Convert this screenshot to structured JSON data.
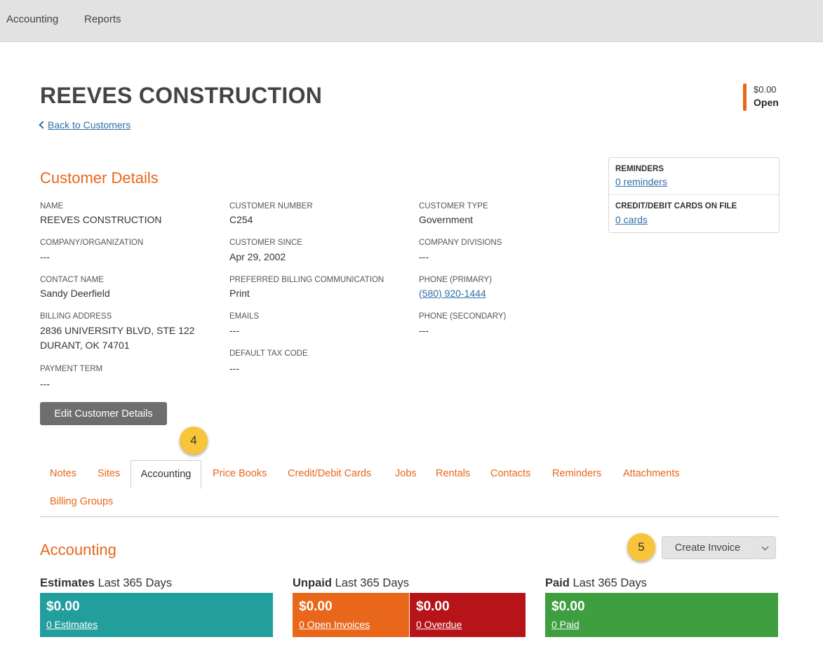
{
  "topnav": {
    "items": [
      "Accounting",
      "Reports"
    ]
  },
  "customer": {
    "title": "REEVES CONSTRUCTION",
    "back_link": "Back to Customers",
    "balance_amount": "$0.00",
    "balance_status": "Open"
  },
  "details": {
    "section_title": "Customer Details",
    "name_label": "NAME",
    "name": "REEVES CONSTRUCTION",
    "company_label": "COMPANY/ORGANIZATION",
    "company": "---",
    "contact_label": "CONTACT NAME",
    "contact": "Sandy Deerfield",
    "billing_label": "BILLING ADDRESS",
    "billing_line1": "2836 UNIVERSITY BLVD, STE 122",
    "billing_line2": "DURANT, OK 74701",
    "payment_term_label": "PAYMENT TERM",
    "payment_term": "---",
    "number_label": "CUSTOMER NUMBER",
    "number": "C254",
    "since_label": "CUSTOMER SINCE",
    "since": "Apr 29, 2002",
    "pref_comm_label": "PREFERRED BILLING COMMUNICATION",
    "pref_comm": "Print",
    "emails_label": "EMAILS",
    "emails": "---",
    "tax_label": "DEFAULT TAX CODE",
    "tax": "---",
    "type_label": "CUSTOMER TYPE",
    "type": "Government",
    "divisions_label": "COMPANY DIVISIONS",
    "divisions": "---",
    "phone1_label": "PHONE (PRIMARY)",
    "phone1": "(580) 920-1444",
    "phone2_label": "PHONE (SECONDARY)",
    "phone2": "---",
    "edit_button": "Edit Customer Details"
  },
  "sidebox": {
    "reminders_label": "REMINDERS",
    "reminders_link": "0 reminders",
    "cards_label": "CREDIT/DEBIT CARDS ON FILE",
    "cards_link": "0 cards"
  },
  "callouts": {
    "first": "4",
    "second": "5"
  },
  "tabs": {
    "notes": "Notes",
    "sites": "Sites",
    "accounting": "Accounting",
    "price_books": "Price Books",
    "cards": "Credit/Debit Cards",
    "jobs": "Jobs",
    "rentals": "Rentals",
    "contacts": "Contacts",
    "reminders": "Reminders",
    "attachments": "Attachments",
    "billing_groups": "Billing Groups"
  },
  "accounting": {
    "section_title": "Accounting",
    "create_button": "Create Invoice",
    "estimates": {
      "head": "Estimates",
      "period": "Last 365 Days",
      "amount": "$0.00",
      "link": "0 Estimates",
      "color": "#229e9d"
    },
    "unpaid": {
      "head": "Unpaid",
      "period": "Last 365 Days"
    },
    "open": {
      "amount": "$0.00",
      "link": "0 Open Invoices",
      "color": "#e8671b"
    },
    "overdue": {
      "amount": "$0.00",
      "link": "0 Overdue",
      "color": "#b71419"
    },
    "paid": {
      "head": "Paid",
      "period": "Last 365 Days",
      "amount": "$0.00",
      "link": "0 Paid",
      "color": "#3f9e40"
    }
  }
}
